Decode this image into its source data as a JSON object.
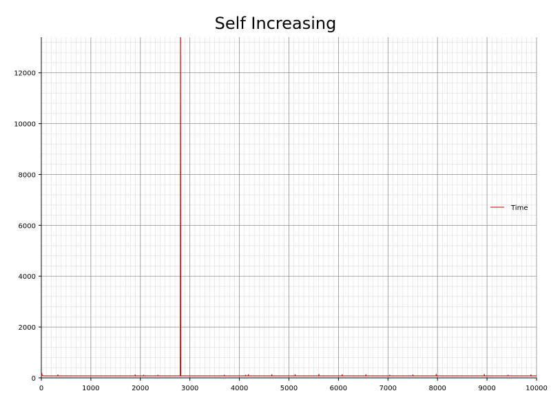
{
  "chart_data": {
    "type": "line",
    "title": "Self Increasing",
    "xlabel": "",
    "ylabel": "",
    "xlim": [
      0,
      10000
    ],
    "ylim": [
      0,
      13400
    ],
    "x_ticks": [
      0,
      1000,
      2000,
      3000,
      4000,
      5000,
      6000,
      7000,
      8000,
      9000,
      10000
    ],
    "y_ticks": [
      0,
      2000,
      4000,
      6000,
      8000,
      10000,
      12000
    ],
    "x_minor_step": 100,
    "y_minor_step": 400,
    "grid": true,
    "legend_position": "right",
    "series": [
      {
        "name": "Time",
        "color": "#cc0000",
        "baseline": 80,
        "points": [
          [
            0,
            80
          ],
          [
            5,
            200
          ],
          [
            10,
            160
          ],
          [
            20,
            80
          ],
          [
            330,
            80
          ],
          [
            335,
            130
          ],
          [
            340,
            80
          ],
          [
            1890,
            80
          ],
          [
            1895,
            130
          ],
          [
            1900,
            80
          ],
          [
            2060,
            80
          ],
          [
            2065,
            120
          ],
          [
            2070,
            80
          ],
          [
            2350,
            80
          ],
          [
            2355,
            120
          ],
          [
            2360,
            80
          ],
          [
            2805,
            80
          ],
          [
            2810,
            13400
          ],
          [
            2815,
            80
          ],
          [
            3690,
            80
          ],
          [
            3695,
            120
          ],
          [
            3700,
            80
          ],
          [
            4120,
            80
          ],
          [
            4125,
            120
          ],
          [
            4130,
            80
          ],
          [
            4175,
            80
          ],
          [
            4180,
            140
          ],
          [
            4185,
            80
          ],
          [
            4650,
            80
          ],
          [
            4655,
            140
          ],
          [
            4660,
            80
          ],
          [
            5120,
            80
          ],
          [
            5125,
            140
          ],
          [
            5130,
            80
          ],
          [
            5600,
            80
          ],
          [
            5605,
            150
          ],
          [
            5610,
            80
          ],
          [
            6070,
            80
          ],
          [
            6075,
            140
          ],
          [
            6080,
            80
          ],
          [
            6550,
            80
          ],
          [
            6555,
            140
          ],
          [
            6560,
            80
          ],
          [
            7030,
            80
          ],
          [
            7035,
            120
          ],
          [
            7040,
            80
          ],
          [
            7500,
            80
          ],
          [
            7505,
            130
          ],
          [
            7510,
            80
          ],
          [
            7970,
            80
          ],
          [
            7975,
            150
          ],
          [
            7980,
            80
          ],
          [
            8940,
            80
          ],
          [
            8945,
            150
          ],
          [
            8950,
            80
          ],
          [
            9420,
            80
          ],
          [
            9425,
            120
          ],
          [
            9430,
            80
          ],
          [
            9880,
            80
          ],
          [
            9885,
            130
          ],
          [
            9890,
            80
          ],
          [
            10000,
            80
          ]
        ]
      }
    ]
  }
}
